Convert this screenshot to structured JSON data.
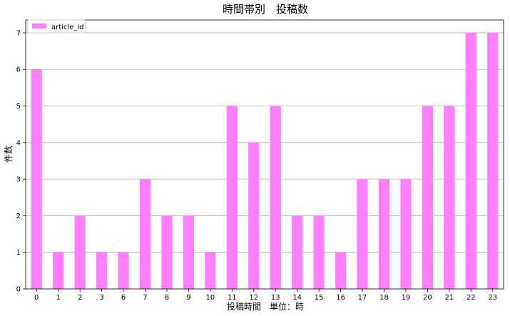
{
  "chart_data": {
    "type": "bar",
    "title": "時間帯別　投稿数",
    "xlabel": "投稿時間　単位：時",
    "ylabel": "件数",
    "categories": [
      "0",
      "1",
      "2",
      "3",
      "6",
      "7",
      "8",
      "9",
      "10",
      "11",
      "12",
      "13",
      "14",
      "15",
      "16",
      "17",
      "18",
      "19",
      "20",
      "21",
      "22",
      "23"
    ],
    "series": [
      {
        "name": "article_id",
        "values": [
          6,
          1,
          2,
          1,
          1,
          3,
          2,
          2,
          1,
          5,
          4,
          5,
          2,
          2,
          1,
          3,
          3,
          3,
          5,
          5,
          7,
          7
        ]
      }
    ],
    "yticks": [
      "0",
      "1",
      "2",
      "3",
      "4",
      "5",
      "6",
      "7"
    ],
    "ylim": [
      0,
      7.35
    ],
    "grid": "horizontal",
    "legend_position": "top-left",
    "colors": {
      "bar": "#ff80ff",
      "grid": "#b0b0b0",
      "axis": "#000000"
    }
  }
}
